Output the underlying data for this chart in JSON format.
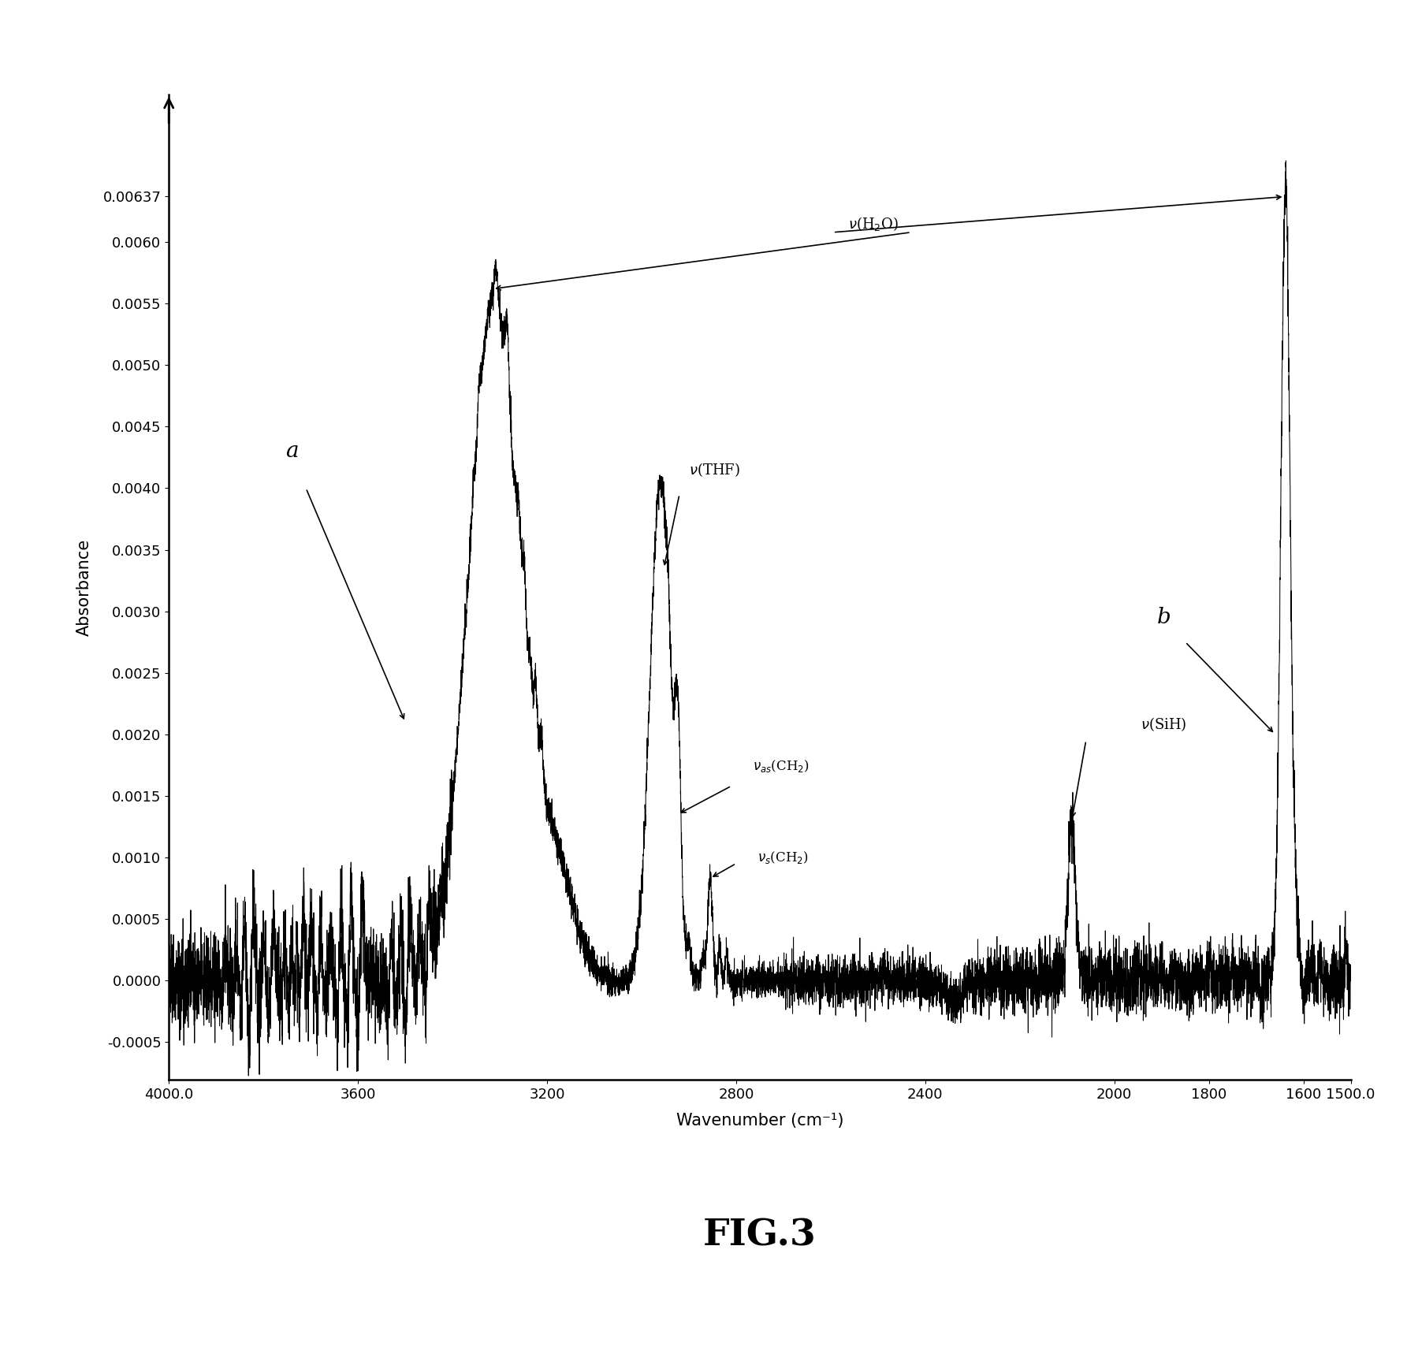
{
  "title": "FIG.3",
  "xlabel": "Wavenumber (cm⁻¹)",
  "ylabel": "Absorbance",
  "xlim": [
    4000.0,
    1500.0
  ],
  "ylim": [
    -0.00081,
    0.0072
  ],
  "background_color": "#ffffff",
  "line_color": "#000000",
  "ytick_vals": [
    -0.0005,
    0.0,
    0.0005,
    0.001,
    0.0015,
    0.002,
    0.0025,
    0.003,
    0.0035,
    0.004,
    0.0045,
    0.005,
    0.0055,
    0.006,
    0.00637
  ],
  "ytick_labels": [
    "-0.0005",
    "0.0000",
    "0.0005",
    "0.0010",
    "0.0015",
    "0.0020",
    "0.0025",
    "0.0030",
    "0.0035",
    "0.0040",
    "0.0045",
    "0.0050",
    "0.0055",
    "0.0060",
    "0.00637"
  ],
  "xtick_vals": [
    4000.0,
    3600,
    3200,
    2800,
    2400,
    2000,
    1800,
    1600,
    1500.0
  ],
  "xtick_labels": [
    "4000.0",
    "3600",
    "3200",
    "2800",
    "2400",
    "2000",
    "1800",
    "1600",
    "1500.0"
  ],
  "figsize": [
    17.85,
    17.13
  ],
  "dpi": 100
}
